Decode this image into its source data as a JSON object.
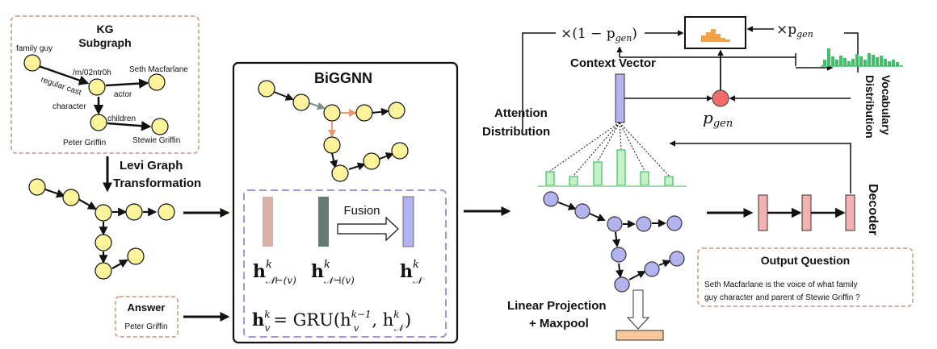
{
  "kg": {
    "title_line1": "KG",
    "title_line2": "Subgraph",
    "nodes": {
      "family_guy": "family guy",
      "m02ntr0h": "/m/02ntr0h",
      "seth": "Seth Macfarlane",
      "peter": "Peter Griffin",
      "stewie": "Stewie Griffin"
    },
    "edges": {
      "regular_cast": "regular cast",
      "actor": "actor",
      "character": "character",
      "children": "children"
    }
  },
  "levi": {
    "line1": "Levi Graph",
    "line2": "Transformation"
  },
  "answer": {
    "title": "Answer",
    "value": "Peter Griffin"
  },
  "biggnn": {
    "title": "BiGGNN",
    "fusion": "Fusion",
    "h": "h",
    "k": "k",
    "sub_fwd": "𝒩⊢(v)",
    "sub_bwd": "𝒩⊣(v)",
    "sub_n": "𝒩",
    "eq_lhs": "h",
    "eq_lhs_sup": "k",
    "eq_lhs_sub": "v",
    "eq_rhs": "= GRU(h",
    "eq_rhs_sup1": "k−1",
    "eq_rhs_sub1": "v",
    "eq_rhs_mid": ", h",
    "eq_rhs_sup2": "k",
    "eq_rhs_sub2": "𝒩",
    "eq_close": ")"
  },
  "decoder": {
    "one_minus": "×(1 − p",
    "gen_sub": "gen",
    "close_paren": ")",
    "times": "×p",
    "context_vector": "Context Vector",
    "attention_line1": "Attention",
    "attention_line2": "Distribution",
    "pgen_p": "p",
    "vocab_line1": "Vocabulary",
    "vocab_line2": "Distribution",
    "decoder_label": "Decoder",
    "linear_line1": "Linear Projection",
    "linear_line2": "+ Maxpool"
  },
  "output": {
    "title": "Output Question",
    "line1": "Seth Macfarlane is the voice of what family",
    "line2": "guy character and parent of Stewie Griffin ?"
  },
  "colors": {
    "node_yellow": "#fdf39b",
    "node_purple": "#b3b3f0",
    "pink": "#f3b1b2",
    "green": "#c6f0c6",
    "green_dark": "#3fbf6a",
    "orange": "#f0a24a",
    "red": "#f26b6b",
    "dashed_brown": "#c9947a",
    "dashed_purple": "#a992e6",
    "beige": "#f4c89a",
    "bar_fwd": "#d8b1a4",
    "bar_bwd": "#657a72",
    "bar_n": "#b3b3f0"
  }
}
